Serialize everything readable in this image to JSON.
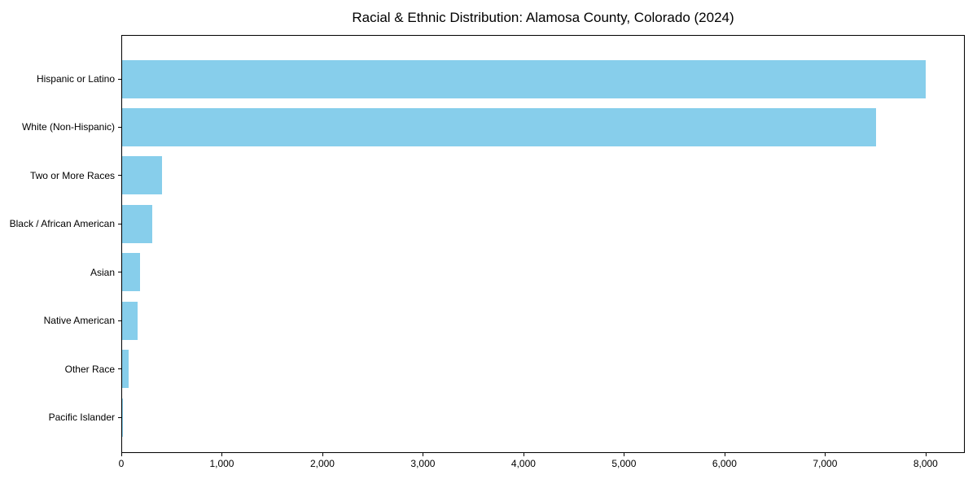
{
  "chart_data": {
    "type": "bar",
    "orientation": "horizontal",
    "title": "Racial & Ethnic Distribution: Alamosa County, Colorado (2024)",
    "xlabel": "",
    "ylabel": "",
    "categories": [
      "Hispanic or Latino",
      "White (Non-Hispanic)",
      "Two or More Races",
      "Black / African American",
      "Asian",
      "Native American",
      "Other Race",
      "Pacific Islander"
    ],
    "values": [
      7990,
      7500,
      400,
      300,
      175,
      155,
      65,
      10
    ],
    "xlim": [
      0,
      8390
    ],
    "x_ticks": [
      0,
      1000,
      2000,
      3000,
      4000,
      5000,
      6000,
      7000,
      8000
    ],
    "x_tick_labels": [
      "0",
      "1,000",
      "2,000",
      "3,000",
      "4,000",
      "5,000",
      "6,000",
      "7,000",
      "8,000"
    ],
    "bar_color": "#87CEEB",
    "axis_color": "#000000",
    "background_color": "#ffffff",
    "grid": false,
    "legend": null
  }
}
